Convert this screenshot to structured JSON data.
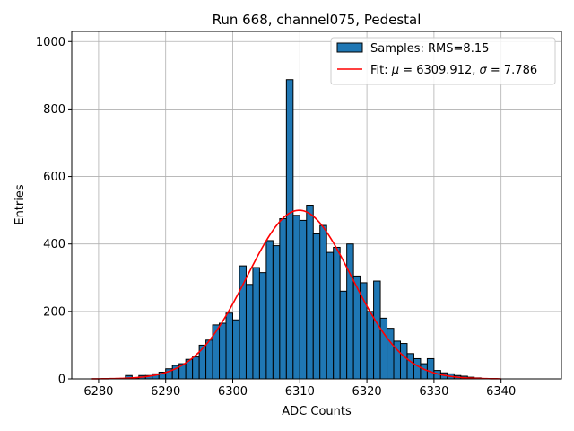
{
  "chart_data": {
    "type": "bar",
    "title": "Run 668, channel075, Pedestal",
    "xlabel": "ADC Counts",
    "ylabel": "Entries",
    "xlim": [
      6276,
      6349
    ],
    "ylim": [
      0,
      1030
    ],
    "xticks": [
      "6280",
      "6290",
      "6300",
      "6310",
      "6320",
      "6330",
      "6340"
    ],
    "yticks": [
      "0",
      "200",
      "400",
      "600",
      "800",
      "1000"
    ],
    "grid": true,
    "legend_position": "top-right",
    "bar_color": "#1f77b4",
    "fit_color": "#ff0000",
    "bin_width": 1,
    "bins": [
      6284,
      6285,
      6286,
      6287,
      6288,
      6289,
      6290,
      6291,
      6292,
      6293,
      6294,
      6295,
      6296,
      6297,
      6298,
      6299,
      6300,
      6301,
      6302,
      6303,
      6304,
      6305,
      6306,
      6307,
      6308,
      6309,
      6310,
      6311,
      6312,
      6313,
      6314,
      6315,
      6316,
      6317,
      6318,
      6319,
      6320,
      6321,
      6322,
      6323,
      6324,
      6325,
      6326,
      6327,
      6328,
      6329,
      6330,
      6331,
      6332,
      6333,
      6334,
      6335,
      6336
    ],
    "values": [
      10,
      3,
      10,
      10,
      15,
      20,
      30,
      40,
      45,
      58,
      65,
      100,
      115,
      160,
      165,
      195,
      175,
      335,
      280,
      330,
      315,
      410,
      395,
      475,
      887,
      485,
      470,
      515,
      430,
      455,
      375,
      390,
      260,
      400,
      305,
      285,
      200,
      290,
      180,
      150,
      112,
      105,
      75,
      60,
      45,
      60,
      25,
      18,
      15,
      10,
      8,
      5,
      3
    ],
    "series": [
      {
        "name": "Samples: RMS=8.15",
        "kind": "histogram"
      },
      {
        "name": "Fit: μ = 6309.912, σ = 7.786",
        "kind": "gaussian",
        "mu": 6309.912,
        "sigma": 7.786,
        "amplitude": 500,
        "range": [
          6279,
          6340
        ]
      }
    ],
    "legend": {
      "samples_label": "Samples: RMS=8.15",
      "fit_prefix": "Fit: ",
      "mu_symbol": "μ",
      "mu_value": " = 6309.912, ",
      "sigma_symbol": "σ",
      "sigma_value": " = 7.786"
    }
  }
}
